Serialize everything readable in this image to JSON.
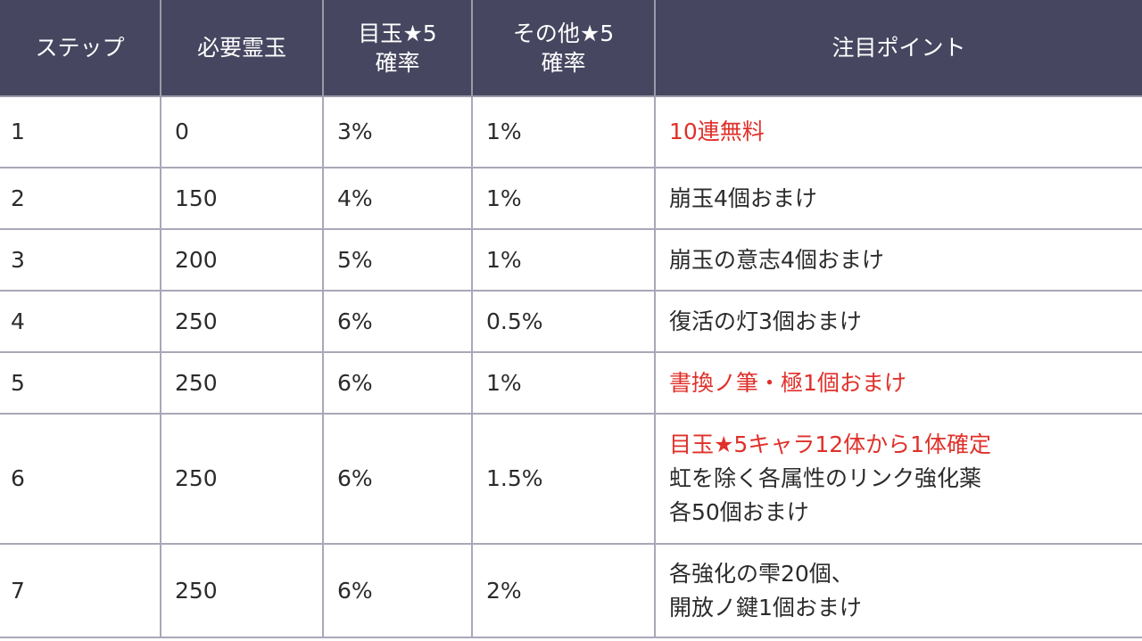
{
  "headers": {
    "step": "ステップ",
    "cost": "必要霊玉",
    "featured_rate_line1": "目玉★5",
    "featured_rate_line2": "確率",
    "other_rate_line1": "その他★5",
    "other_rate_line2": "確率",
    "notes": "注目ポイント"
  },
  "colors": {
    "header_bg": "#464660",
    "header_text": "#ffffff",
    "highlight_red": "#e0302a",
    "body_text": "#2b2b2b",
    "grid_line": "#a8a8b8"
  },
  "rows": [
    {
      "step": "1",
      "cost": "0",
      "featured_rate": "3%",
      "other_rate": "1%",
      "notes": [
        {
          "text": "10連無料",
          "highlight": true
        }
      ]
    },
    {
      "step": "2",
      "cost": "150",
      "featured_rate": "4%",
      "other_rate": "1%",
      "notes": [
        {
          "text": "崩玉4個おまけ",
          "highlight": false
        }
      ]
    },
    {
      "step": "3",
      "cost": "200",
      "featured_rate": "5%",
      "other_rate": "1%",
      "notes": [
        {
          "text": "崩玉の意志4個おまけ",
          "highlight": false
        }
      ]
    },
    {
      "step": "4",
      "cost": "250",
      "featured_rate": "6%",
      "other_rate": "0.5%",
      "notes": [
        {
          "text": "復活の灯3個おまけ",
          "highlight": false
        }
      ]
    },
    {
      "step": "5",
      "cost": "250",
      "featured_rate": "6%",
      "other_rate": "1%",
      "notes": [
        {
          "text": "書換ノ筆・極1個おまけ",
          "highlight": true
        }
      ]
    },
    {
      "step": "6",
      "cost": "250",
      "featured_rate": "6%",
      "other_rate": "1.5%",
      "notes": [
        {
          "text": "目玉★5キャラ12体から1体確定",
          "highlight": true
        },
        {
          "text": "虹を除く各属性のリンク強化薬",
          "highlight": false
        },
        {
          "text": "各50個おまけ",
          "highlight": false
        }
      ]
    },
    {
      "step": "7",
      "cost": "250",
      "featured_rate": "6%",
      "other_rate": "2%",
      "notes": [
        {
          "text": "各強化の雫20個、",
          "highlight": false
        },
        {
          "text": "開放ノ鍵1個おまけ",
          "highlight": false
        }
      ]
    }
  ]
}
